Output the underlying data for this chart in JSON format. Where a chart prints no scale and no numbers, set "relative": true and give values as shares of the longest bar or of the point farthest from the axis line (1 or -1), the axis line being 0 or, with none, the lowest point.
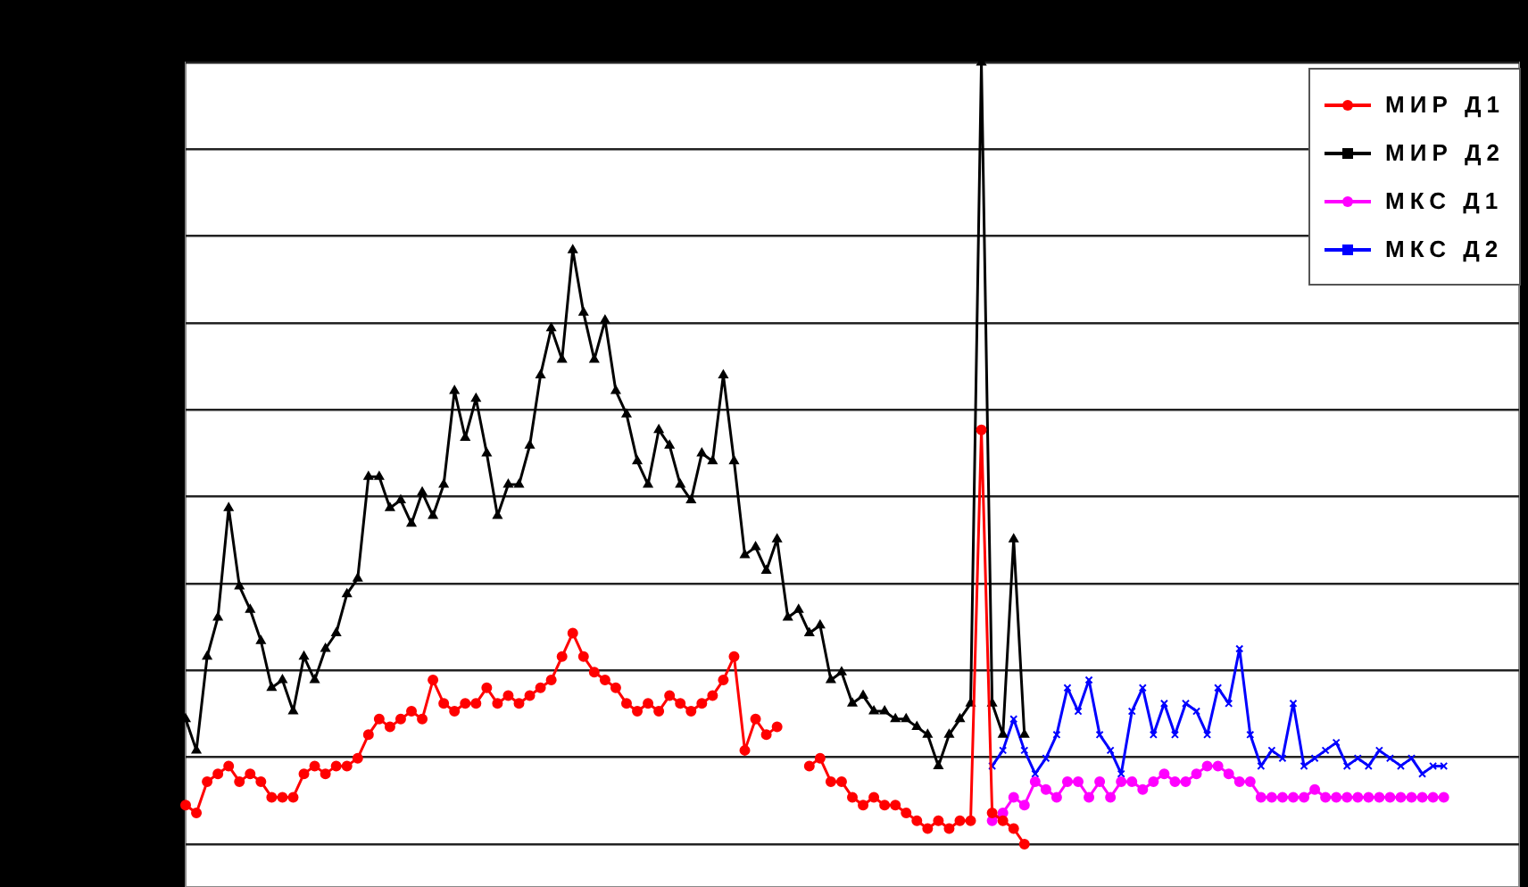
{
  "chart_data": {
    "type": "line",
    "relative": true,
    "grid": "y",
    "legend": "top right",
    "tick_labels": false,
    "categories": [
      null,
      null,
      null,
      null,
      null,
      null,
      null,
      null,
      null,
      null,
      null,
      null,
      null,
      null,
      null,
      null,
      null,
      null,
      null,
      null,
      null,
      null,
      null,
      null,
      null,
      null,
      null,
      null,
      null,
      null,
      null,
      null,
      null,
      null,
      null,
      null,
      null,
      null,
      null,
      null,
      null,
      null,
      null,
      null,
      null,
      null,
      null,
      null,
      null,
      null,
      null,
      null,
      null,
      null,
      null,
      null,
      null,
      null,
      null,
      null,
      null,
      null,
      null,
      null,
      null,
      null,
      null,
      null,
      null,
      null,
      null,
      null,
      null,
      null,
      null,
      null,
      null,
      null,
      null,
      null,
      null,
      null,
      null,
      null,
      null,
      null,
      null,
      null,
      null,
      null,
      null,
      null,
      null,
      null,
      null,
      null,
      null,
      null,
      null,
      null,
      null,
      null,
      null,
      null,
      null,
      null,
      null,
      null,
      null,
      null,
      null,
      null,
      null,
      null,
      null,
      null,
      null,
      null,
      null,
      null,
      null,
      null,
      null,
      null,
      null
    ],
    "series": [
      {
        "name": "МИР Д1",
        "color": "#ff0000",
        "marker": "circle",
        "values": [
          0.05,
          0.04,
          0.08,
          0.09,
          0.1,
          0.08,
          0.09,
          0.08,
          0.06,
          0.06,
          0.06,
          0.09,
          0.1,
          0.09,
          0.1,
          0.1,
          0.11,
          0.14,
          0.16,
          0.15,
          0.16,
          0.17,
          0.16,
          0.21,
          0.18,
          0.17,
          0.18,
          0.18,
          0.2,
          0.18,
          0.19,
          0.18,
          0.19,
          0.2,
          0.21,
          0.24,
          0.27,
          0.24,
          0.22,
          0.21,
          0.2,
          0.18,
          0.17,
          0.18,
          0.17,
          0.19,
          0.18,
          0.17,
          0.18,
          0.19,
          0.21,
          0.24,
          0.12,
          0.16,
          0.14,
          0.15,
          null,
          null,
          0.1,
          0.11,
          0.08,
          0.08,
          0.06,
          0.05,
          0.06,
          0.05,
          0.05,
          0.04,
          0.03,
          0.02,
          0.03,
          0.02,
          0.03,
          0.03,
          0.53,
          0.04,
          0.03,
          0.02,
          0,
          null,
          null,
          null,
          null,
          null,
          null,
          null,
          null,
          null,
          null,
          null,
          null,
          null,
          null,
          null,
          null,
          null,
          null,
          null,
          null,
          null,
          null,
          null,
          null,
          null,
          null,
          null,
          null,
          null,
          null,
          null,
          null,
          null,
          null,
          null,
          null,
          null,
          null,
          null,
          null,
          null,
          null,
          null,
          null,
          null,
          null
        ]
      },
      {
        "name": "МИР Д2",
        "color": "#000000",
        "marker": "triangle",
        "values": [
          0.16,
          0.12,
          0.24,
          0.29,
          0.43,
          0.33,
          0.3,
          0.26,
          0.2,
          0.21,
          0.17,
          0.24,
          0.21,
          0.25,
          0.27,
          0.32,
          0.34,
          0.47,
          0.47,
          0.43,
          0.44,
          0.41,
          0.45,
          0.42,
          0.46,
          0.58,
          0.52,
          0.57,
          0.5,
          0.42,
          0.46,
          0.46,
          0.51,
          0.6,
          0.66,
          0.62,
          0.76,
          0.68,
          0.62,
          0.67,
          0.58,
          0.55,
          0.49,
          0.46,
          0.53,
          0.51,
          0.46,
          0.44,
          0.5,
          0.49,
          0.6,
          0.49,
          0.37,
          0.38,
          0.35,
          0.39,
          0.29,
          0.3,
          0.27,
          0.28,
          0.21,
          0.22,
          0.18,
          0.19,
          0.17,
          0.17,
          0.16,
          0.16,
          0.15,
          0.14,
          0.1,
          0.14,
          0.16,
          0.18,
          1,
          0.18,
          0.14,
          0.39,
          0.14,
          null,
          null,
          null,
          null,
          null,
          null,
          null,
          null,
          null,
          null,
          null,
          null,
          null,
          null,
          null,
          null,
          null,
          null,
          null,
          null,
          null,
          null,
          null,
          null,
          null,
          null,
          null,
          null,
          null,
          null,
          null,
          null,
          null,
          null,
          null,
          null,
          null,
          null,
          null,
          null,
          null,
          null,
          null,
          null,
          null,
          null
        ]
      },
      {
        "name": "МКС Д1",
        "color": "#ff00ff",
        "marker": "circle",
        "values": [
          null,
          null,
          null,
          null,
          null,
          null,
          null,
          null,
          null,
          null,
          null,
          null,
          null,
          null,
          null,
          null,
          null,
          null,
          null,
          null,
          null,
          null,
          null,
          null,
          null,
          null,
          null,
          null,
          null,
          null,
          null,
          null,
          null,
          null,
          null,
          null,
          null,
          null,
          null,
          null,
          null,
          null,
          null,
          null,
          null,
          null,
          null,
          null,
          null,
          null,
          null,
          null,
          null,
          null,
          null,
          null,
          null,
          null,
          null,
          null,
          null,
          null,
          null,
          null,
          null,
          null,
          null,
          null,
          null,
          null,
          null,
          null,
          null,
          null,
          null,
          0.03,
          0.04,
          0.06,
          0.05,
          0.08,
          0.07,
          0.06,
          0.08,
          0.08,
          0.06,
          0.08,
          0.06,
          0.08,
          0.08,
          0.07,
          0.08,
          0.09,
          0.08,
          0.08,
          0.09,
          0.1,
          0.1,
          0.09,
          0.08,
          0.08,
          0.06,
          0.06,
          0.06,
          0.06,
          0.06,
          0.07,
          0.06,
          0.06,
          0.06,
          0.06,
          0.06,
          0.06,
          0.06,
          0.06,
          0.06,
          0.06,
          0.06,
          0.06,
          null,
          null,
          null,
          null,
          null,
          null,
          null
        ]
      },
      {
        "name": "МКС Д2",
        "color": "#0000ff",
        "marker": "cross",
        "values": [
          null,
          null,
          null,
          null,
          null,
          null,
          null,
          null,
          null,
          null,
          null,
          null,
          null,
          null,
          null,
          null,
          null,
          null,
          null,
          null,
          null,
          null,
          null,
          null,
          null,
          null,
          null,
          null,
          null,
          null,
          null,
          null,
          null,
          null,
          null,
          null,
          null,
          null,
          null,
          null,
          null,
          null,
          null,
          null,
          null,
          null,
          null,
          null,
          null,
          null,
          null,
          null,
          null,
          null,
          null,
          null,
          null,
          null,
          null,
          null,
          null,
          null,
          null,
          null,
          null,
          null,
          null,
          null,
          null,
          null,
          null,
          null,
          null,
          null,
          null,
          0.1,
          0.12,
          0.16,
          0.12,
          0.09,
          0.11,
          0.14,
          0.2,
          0.17,
          0.21,
          0.14,
          0.12,
          0.09,
          0.17,
          0.2,
          0.14,
          0.18,
          0.14,
          0.18,
          0.17,
          0.14,
          0.2,
          0.18,
          0.25,
          0.14,
          0.1,
          0.12,
          0.11,
          0.18,
          0.1,
          0.11,
          0.12,
          0.13,
          0.1,
          0.11,
          0.1,
          0.12,
          0.11,
          0.1,
          0.11,
          0.09,
          0.1,
          0.1,
          null,
          null,
          null,
          null,
          null,
          null,
          null
        ]
      }
    ]
  }
}
